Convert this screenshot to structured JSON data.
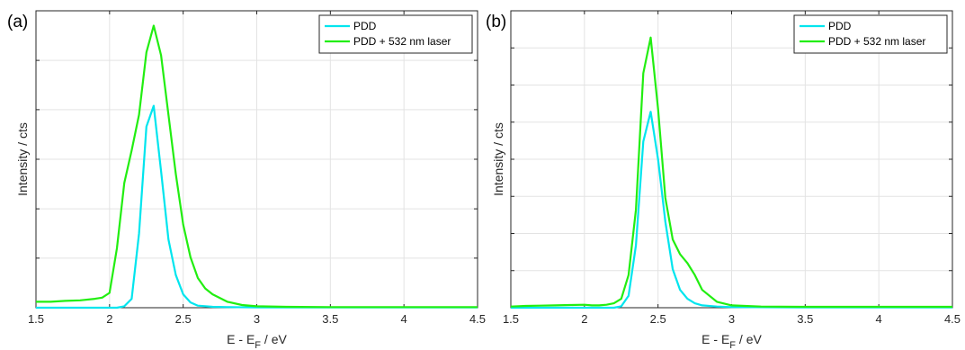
{
  "chart_data": [
    {
      "type": "line",
      "panel_label": "(a)",
      "xlabel": {
        "main": "E - E",
        "sub": "F",
        "tail": " / eV"
      },
      "ylabel": "Intensity / cts",
      "xlim": [
        1.5,
        4.5
      ],
      "ylim": [
        0,
        1
      ],
      "xticks": [
        "1.5",
        "2",
        "2.5",
        "3",
        "3.5",
        "4",
        "4.5"
      ],
      "xtick_values": [
        1.5,
        2,
        2.5,
        3,
        3.5,
        4,
        4.5
      ],
      "yticks": [
        0.167,
        0.333,
        0.5,
        0.667,
        0.833
      ],
      "grid": true,
      "legend_position": "top-right",
      "series": [
        {
          "name": "PDD",
          "color": "#00e5ee",
          "x": [
            1.5,
            1.6,
            1.7,
            1.8,
            1.9,
            2.0,
            2.05,
            2.1,
            2.15,
            2.2,
            2.25,
            2.3,
            2.35,
            2.4,
            2.45,
            2.5,
            2.55,
            2.6,
            2.7,
            2.8,
            3.0,
            3.5,
            4.0,
            4.5
          ],
          "y": [
            0.0,
            0.0,
            0.0,
            0.0,
            0.0,
            0.0,
            0.0,
            0.005,
            0.03,
            0.25,
            0.61,
            0.68,
            0.46,
            0.23,
            0.11,
            0.045,
            0.018,
            0.007,
            0.003,
            0.002,
            0.001,
            0.001,
            0.001,
            0.001
          ]
        },
        {
          "name": "PDD + 532 nm laser",
          "color": "#22ee11",
          "x": [
            1.5,
            1.6,
            1.7,
            1.8,
            1.9,
            1.95,
            2.0,
            2.05,
            2.1,
            2.15,
            2.2,
            2.25,
            2.3,
            2.35,
            2.4,
            2.45,
            2.5,
            2.55,
            2.6,
            2.65,
            2.7,
            2.8,
            2.9,
            3.0,
            3.2,
            3.5,
            4.0,
            4.5
          ],
          "y": [
            0.02,
            0.02,
            0.023,
            0.025,
            0.03,
            0.034,
            0.05,
            0.2,
            0.42,
            0.53,
            0.65,
            0.86,
            0.95,
            0.85,
            0.65,
            0.45,
            0.28,
            0.17,
            0.1,
            0.065,
            0.045,
            0.02,
            0.009,
            0.005,
            0.003,
            0.002,
            0.002,
            0.002
          ]
        }
      ]
    },
    {
      "type": "line",
      "panel_label": "(b)",
      "xlabel": {
        "main": "E - E",
        "sub": "F",
        "tail": " / eV"
      },
      "ylabel": "Intensity / cts",
      "xlim": [
        1.5,
        4.5
      ],
      "ylim": [
        0,
        1
      ],
      "xticks": [
        "1.5",
        "2",
        "2.5",
        "3",
        "3.5",
        "4",
        "4.5"
      ],
      "xtick_values": [
        1.5,
        2,
        2.5,
        3,
        3.5,
        4,
        4.5
      ],
      "yticks": [
        0.125,
        0.25,
        0.375,
        0.5,
        0.625,
        0.75,
        0.875
      ],
      "grid": true,
      "legend_position": "top-right",
      "series": [
        {
          "name": "PDD",
          "color": "#00e5ee",
          "x": [
            1.5,
            1.8,
            2.0,
            2.2,
            2.25,
            2.3,
            2.35,
            2.4,
            2.45,
            2.5,
            2.55,
            2.6,
            2.65,
            2.7,
            2.75,
            2.8,
            2.9,
            3.0,
            3.5,
            4.0,
            4.5
          ],
          "y": [
            0.0,
            0.0,
            0.0,
            0.0,
            0.005,
            0.04,
            0.21,
            0.56,
            0.66,
            0.5,
            0.29,
            0.13,
            0.06,
            0.03,
            0.015,
            0.008,
            0.004,
            0.002,
            0.001,
            0.001,
            0.001
          ],
          "note_color": "#00e5ee"
        },
        {
          "name": "PDD + 532 nm laser",
          "color": "#22ee11",
          "x": [
            1.5,
            1.6,
            1.7,
            1.8,
            1.9,
            2.0,
            2.05,
            2.1,
            2.15,
            2.2,
            2.25,
            2.3,
            2.35,
            2.4,
            2.45,
            2.5,
            2.55,
            2.6,
            2.65,
            2.7,
            2.75,
            2.8,
            2.9,
            3.0,
            3.2,
            3.5,
            4.0,
            4.5
          ],
          "y": [
            0.004,
            0.006,
            0.007,
            0.008,
            0.009,
            0.01,
            0.008,
            0.008,
            0.01,
            0.015,
            0.03,
            0.11,
            0.33,
            0.79,
            0.91,
            0.67,
            0.37,
            0.23,
            0.18,
            0.15,
            0.11,
            0.06,
            0.02,
            0.008,
            0.004,
            0.003,
            0.003,
            0.003
          ]
        }
      ]
    }
  ]
}
